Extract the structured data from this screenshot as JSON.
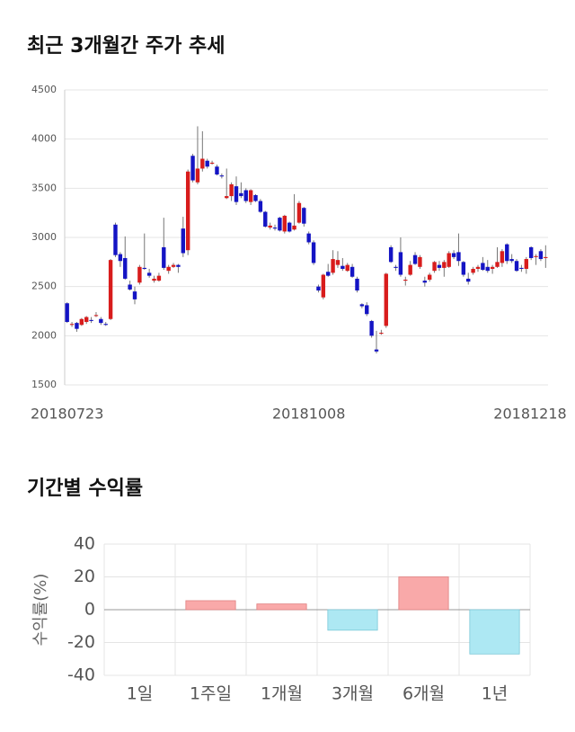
{
  "chart_data": [
    {
      "type": "candlestick",
      "title": "최근 3개월간 주가 추세",
      "categories": [
        "20180723",
        null,
        null,
        null,
        null,
        null,
        null,
        null,
        null,
        null,
        null,
        null,
        null,
        null,
        null,
        null,
        null,
        null,
        null,
        null,
        null,
        null,
        null,
        null,
        null,
        null,
        null,
        null,
        null,
        null,
        null,
        null,
        null,
        null,
        null,
        null,
        null,
        null,
        null,
        null,
        null,
        null,
        null,
        null,
        null,
        null,
        null,
        null,
        null,
        null,
        "20181008",
        null,
        null,
        null,
        null,
        null,
        null,
        null,
        null,
        null,
        null,
        null,
        null,
        null,
        null,
        null,
        null,
        null,
        null,
        null,
        null,
        null,
        null,
        null,
        null,
        null,
        null,
        null,
        null,
        null,
        null,
        null,
        null,
        null,
        null,
        null,
        null,
        null,
        null,
        null,
        null,
        null,
        null,
        null,
        null,
        null,
        null,
        "20181218",
        null,
        null
      ],
      "ohlc": [
        [
          2330,
          2340,
          2130,
          2140
        ],
        [
          2110,
          2140,
          2090,
          2120
        ],
        [
          2130,
          2140,
          2040,
          2070
        ],
        [
          2110,
          2180,
          2100,
          2170
        ],
        [
          2140,
          2200,
          2120,
          2190
        ],
        [
          2160,
          2190,
          2130,
          2150
        ],
        [
          2200,
          2240,
          2190,
          2210
        ],
        [
          2170,
          2190,
          2110,
          2130
        ],
        [
          2120,
          2140,
          2100,
          2110
        ],
        [
          2170,
          2780,
          2160,
          2770
        ],
        [
          3130,
          3150,
          2800,
          2820
        ],
        [
          2830,
          2850,
          2700,
          2760
        ],
        [
          2790,
          3010,
          2570,
          2580
        ],
        [
          2520,
          2560,
          2460,
          2470
        ],
        [
          2450,
          2500,
          2320,
          2370
        ],
        [
          2540,
          2720,
          2520,
          2700
        ],
        [
          2690,
          3040,
          2670,
          2680
        ],
        [
          2640,
          2680,
          2590,
          2610
        ],
        [
          2560,
          2610,
          2540,
          2580
        ],
        [
          2560,
          2640,
          2550,
          2610
        ],
        [
          2900,
          3200,
          2670,
          2690
        ],
        [
          2660,
          2720,
          2630,
          2700
        ],
        [
          2700,
          2740,
          2690,
          2720
        ],
        [
          2720,
          2730,
          2640,
          2700
        ],
        [
          3090,
          3210,
          2800,
          2840
        ],
        [
          2870,
          3690,
          2820,
          3670
        ],
        [
          3830,
          3850,
          3560,
          3580
        ],
        [
          3560,
          4130,
          3540,
          3700
        ],
        [
          3700,
          4080,
          3670,
          3800
        ],
        [
          3780,
          3800,
          3700,
          3720
        ],
        [
          3750,
          3780,
          3740,
          3760
        ],
        [
          3720,
          3740,
          3630,
          3640
        ],
        [
          3630,
          3650,
          3600,
          3620
        ],
        [
          3400,
          3700,
          3390,
          3420
        ],
        [
          3420,
          3560,
          3370,
          3540
        ],
        [
          3520,
          3620,
          3330,
          3360
        ],
        [
          3450,
          3560,
          3400,
          3420
        ],
        [
          3480,
          3500,
          3350,
          3370
        ],
        [
          3360,
          3490,
          3330,
          3480
        ],
        [
          3430,
          3440,
          3360,
          3370
        ],
        [
          3370,
          3390,
          3250,
          3260
        ],
        [
          3260,
          3270,
          3100,
          3110
        ],
        [
          3100,
          3150,
          3080,
          3120
        ],
        [
          3100,
          3130,
          3070,
          3090
        ],
        [
          3200,
          3210,
          3060,
          3070
        ],
        [
          3060,
          3230,
          3040,
          3220
        ],
        [
          3150,
          3160,
          3050,
          3060
        ],
        [
          3080,
          3440,
          3070,
          3120
        ],
        [
          3150,
          3370,
          3140,
          3350
        ],
        [
          3300,
          3310,
          3110,
          3140
        ],
        [
          3040,
          3060,
          2930,
          2950
        ],
        [
          2950,
          2970,
          2720,
          2740
        ],
        [
          2500,
          2520,
          2440,
          2460
        ],
        [
          2390,
          2630,
          2370,
          2620
        ],
        [
          2650,
          2730,
          2600,
          2610
        ],
        [
          2640,
          2870,
          2620,
          2780
        ],
        [
          2720,
          2860,
          2690,
          2770
        ],
        [
          2710,
          2790,
          2660,
          2680
        ],
        [
          2660,
          2740,
          2650,
          2720
        ],
        [
          2700,
          2730,
          2590,
          2600
        ],
        [
          2580,
          2600,
          2440,
          2460
        ],
        [
          2320,
          2330,
          2280,
          2300
        ],
        [
          2310,
          2340,
          2200,
          2220
        ],
        [
          2150,
          2160,
          1980,
          2000
        ],
        [
          1860,
          2050,
          1820,
          1840
        ],
        [
          2020,
          2060,
          2010,
          2030
        ],
        [
          2100,
          2640,
          2080,
          2630
        ],
        [
          2900,
          2920,
          2740,
          2750
        ],
        [
          2700,
          2720,
          2660,
          2690
        ],
        [
          2850,
          3000,
          2600,
          2620
        ],
        [
          2560,
          2600,
          2510,
          2570
        ],
        [
          2620,
          2760,
          2610,
          2720
        ],
        [
          2820,
          2850,
          2720,
          2730
        ],
        [
          2700,
          2820,
          2680,
          2800
        ],
        [
          2560,
          2600,
          2500,
          2540
        ],
        [
          2570,
          2640,
          2550,
          2620
        ],
        [
          2660,
          2760,
          2640,
          2750
        ],
        [
          2720,
          2760,
          2660,
          2690
        ],
        [
          2690,
          2770,
          2600,
          2750
        ],
        [
          2700,
          2860,
          2690,
          2840
        ],
        [
          2840,
          2870,
          2780,
          2800
        ],
        [
          2850,
          3040,
          2710,
          2760
        ],
        [
          2750,
          2760,
          2600,
          2620
        ],
        [
          2580,
          2640,
          2520,
          2550
        ],
        [
          2640,
          2700,
          2620,
          2680
        ],
        [
          2680,
          2720,
          2650,
          2700
        ],
        [
          2740,
          2800,
          2660,
          2670
        ],
        [
          2700,
          2770,
          2640,
          2660
        ],
        [
          2680,
          2720,
          2630,
          2700
        ],
        [
          2700,
          2900,
          2690,
          2750
        ],
        [
          2740,
          2880,
          2700,
          2860
        ],
        [
          2930,
          2940,
          2730,
          2760
        ],
        [
          2780,
          2830,
          2740,
          2760
        ],
        [
          2760,
          2780,
          2650,
          2660
        ],
        [
          2690,
          2720,
          2650,
          2680
        ],
        [
          2680,
          2800,
          2630,
          2780
        ],
        [
          2900,
          2910,
          2770,
          2790
        ],
        [
          2800,
          2830,
          2720,
          2810
        ],
        [
          2860,
          2880,
          2760,
          2780
        ],
        [
          2790,
          2920,
          2690,
          2800
        ]
      ],
      "up_color": "#d81c1c",
      "down_color": "#1414c4",
      "ylim": [
        1500,
        4500
      ],
      "yticks": [
        1500,
        2000,
        2500,
        3000,
        3500,
        4000,
        4500
      ],
      "grid": true
    },
    {
      "type": "bar",
      "title": "기간별 수익률",
      "ylabel": "수익률(%)",
      "categories": [
        "1일",
        "1주일",
        "1개월",
        "3개월",
        "6개월",
        "1년"
      ],
      "values": [
        0,
        5.5,
        3.5,
        -12.5,
        20,
        -27
      ],
      "positive_color": "#f9a9a9",
      "negative_color": "#ade8f3",
      "ylim": [
        -40,
        40
      ],
      "yticks": [
        -40,
        -20,
        0,
        20,
        40
      ],
      "grid": true
    }
  ]
}
